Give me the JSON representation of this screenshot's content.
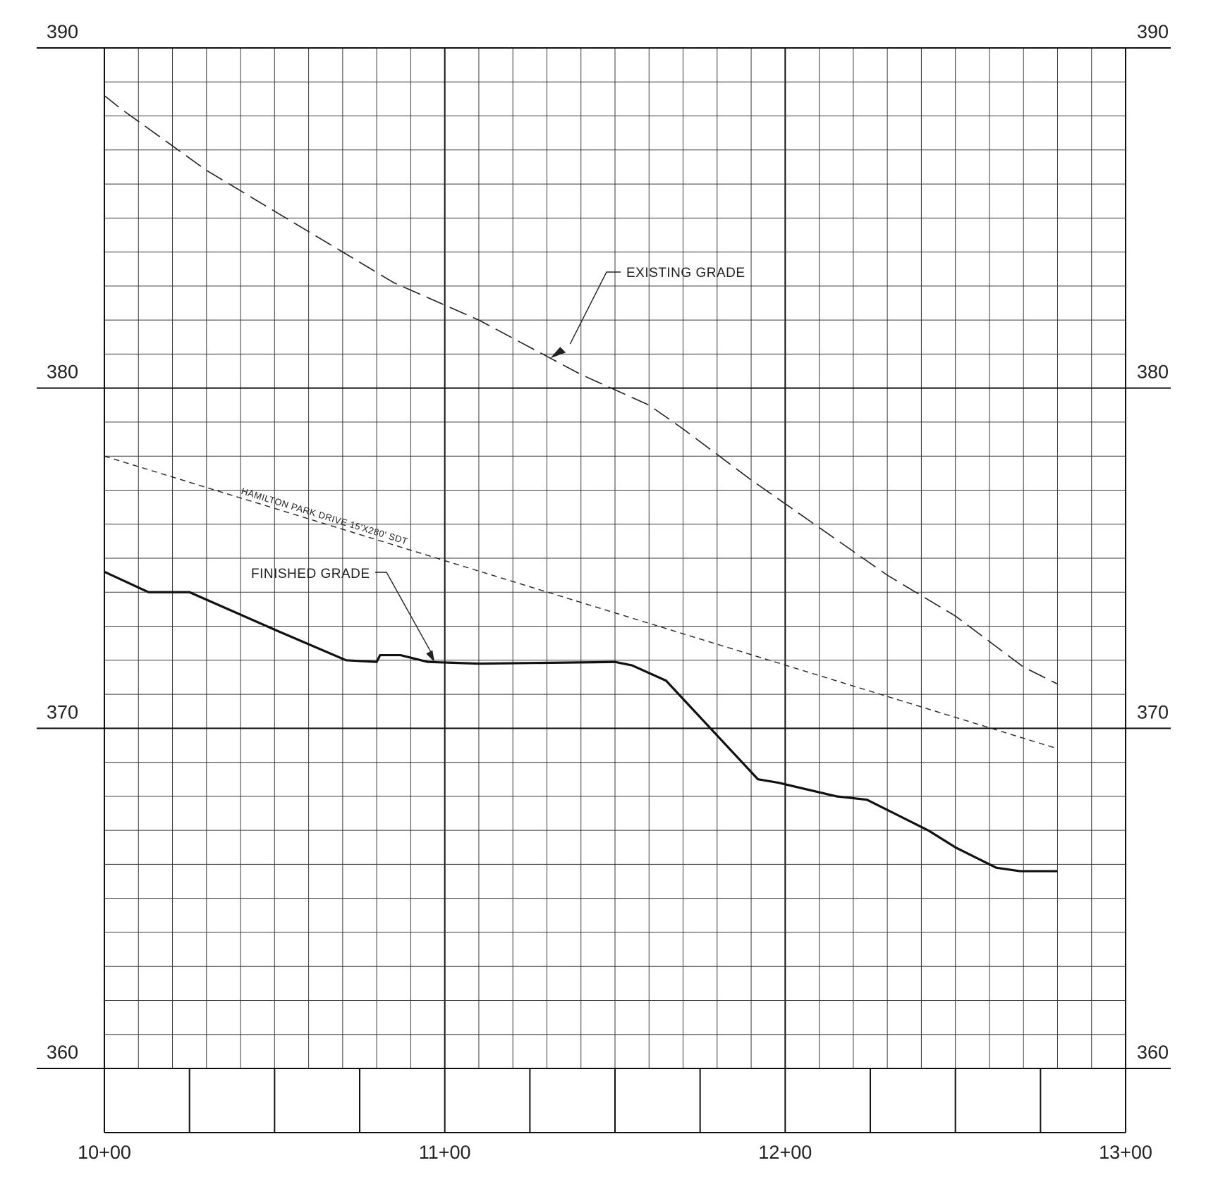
{
  "chart_data": {
    "type": "line",
    "title": "",
    "xlabel": "",
    "ylabel": "",
    "xlim": [
      1000,
      1300
    ],
    "ylim": [
      360,
      390
    ],
    "grid": true,
    "y_ticks": [
      {
        "value": 390,
        "label": "390"
      },
      {
        "value": 380,
        "label": "380"
      },
      {
        "value": 370,
        "label": "370"
      },
      {
        "value": 360,
        "label": "360"
      }
    ],
    "x_ticks": [
      {
        "value": 1000,
        "label": "10+00"
      },
      {
        "value": 1100,
        "label": "11+00"
      },
      {
        "value": 1200,
        "label": "12+00"
      },
      {
        "value": 1300,
        "label": "13+00"
      }
    ],
    "series": [
      {
        "name": "EXISTING GRADE",
        "style": "dashed-long",
        "x": [
          1000,
          1005,
          1030,
          1060,
          1085,
          1110,
          1140,
          1160,
          1170,
          1190,
          1210,
          1230,
          1250,
          1270,
          1280
        ],
        "y": [
          388.6,
          388.2,
          386.4,
          384.6,
          383.1,
          382.0,
          380.4,
          379.5,
          378.8,
          377.3,
          375.9,
          374.5,
          373.3,
          371.8,
          371.3
        ]
      },
      {
        "name": "HAMILTON PARK DRIVE 15'X280' SDT",
        "style": "dashed-short",
        "x": [
          1000,
          1280
        ],
        "y": [
          378.0,
          369.4
        ]
      },
      {
        "name": "FINISHED GRADE",
        "style": "solid",
        "x": [
          1000,
          1013,
          1017,
          1025,
          1050,
          1071,
          1080,
          1081,
          1087,
          1095,
          1110,
          1150,
          1155,
          1165,
          1192,
          1198,
          1215,
          1224,
          1242,
          1250,
          1258,
          1262,
          1269,
          1280
        ],
        "y": [
          374.6,
          374.0,
          374.0,
          374.0,
          372.9,
          372.0,
          371.95,
          372.15,
          372.15,
          371.95,
          371.9,
          371.95,
          371.85,
          371.4,
          368.5,
          368.4,
          368.0,
          367.9,
          367.0,
          366.5,
          366.1,
          365.9,
          365.8,
          365.8
        ]
      }
    ],
    "annotations": [
      {
        "text": "EXISTING GRADE",
        "target": "existing-grade"
      },
      {
        "text": "FINISHED GRADE",
        "target": "finished-grade"
      },
      {
        "text": "HAMILTON PARK DRIVE 15'X280' SDT",
        "target": "sdt-line"
      }
    ]
  }
}
